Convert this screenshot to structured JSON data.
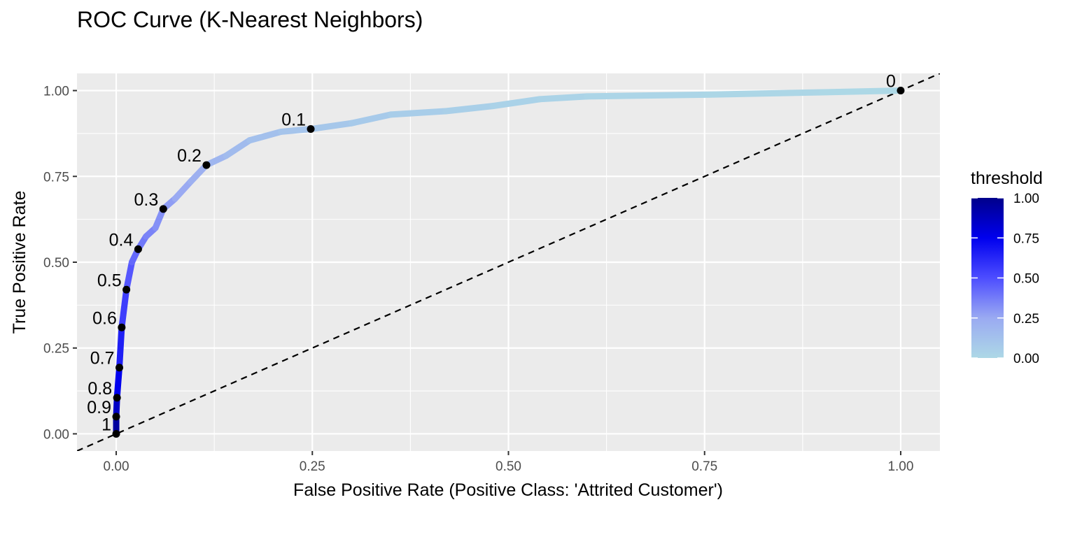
{
  "chart_data": {
    "type": "line",
    "title": "ROC Curve (K-Nearest Neighbors)",
    "xlabel": "False Positive Rate (Positive Class: 'Attrited Customer')",
    "ylabel": "True Positive Rate",
    "xlim": [
      -0.05,
      1.05
    ],
    "ylim": [
      -0.05,
      1.05
    ],
    "x_ticks": [
      0.0,
      0.25,
      0.5,
      0.75,
      1.0
    ],
    "x_tick_labels": [
      "0.00",
      "0.25",
      "0.50",
      "0.75",
      "1.00"
    ],
    "y_ticks": [
      0.0,
      0.25,
      0.5,
      0.75,
      1.0
    ],
    "y_tick_labels": [
      "0.00",
      "0.25",
      "0.50",
      "0.75",
      "1.00"
    ],
    "grid": true,
    "background": "#ebebeb",
    "legend_position": "right",
    "legend": {
      "title": "threshold",
      "labels": [
        "1.00",
        "0.75",
        "0.50",
        "0.25",
        "0.00"
      ],
      "values": [
        1.0,
        0.75,
        0.5,
        0.25,
        0.0
      ],
      "colors": [
        "#00008b",
        "#0000ee",
        "#4d4dff",
        "#9aaaf2",
        "#add8e6"
      ]
    },
    "curve": [
      {
        "fpr": 0.0,
        "tpr": 0.0,
        "threshold": 1.0
      },
      {
        "fpr": 0.0,
        "tpr": 0.05,
        "threshold": 0.9
      },
      {
        "fpr": 0.001,
        "tpr": 0.105,
        "threshold": 0.8
      },
      {
        "fpr": 0.004,
        "tpr": 0.193,
        "threshold": 0.7
      },
      {
        "fpr": 0.007,
        "tpr": 0.31,
        "threshold": 0.6
      },
      {
        "fpr": 0.013,
        "tpr": 0.42,
        "threshold": 0.5
      },
      {
        "fpr": 0.02,
        "tpr": 0.5,
        "threshold": 0.45
      },
      {
        "fpr": 0.028,
        "tpr": 0.538,
        "threshold": 0.4
      },
      {
        "fpr": 0.038,
        "tpr": 0.575,
        "threshold": 0.37
      },
      {
        "fpr": 0.05,
        "tpr": 0.6,
        "threshold": 0.34
      },
      {
        "fpr": 0.06,
        "tpr": 0.655,
        "threshold": 0.3
      },
      {
        "fpr": 0.075,
        "tpr": 0.685,
        "threshold": 0.27
      },
      {
        "fpr": 0.095,
        "tpr": 0.735,
        "threshold": 0.23
      },
      {
        "fpr": 0.115,
        "tpr": 0.783,
        "threshold": 0.2
      },
      {
        "fpr": 0.14,
        "tpr": 0.81,
        "threshold": 0.17
      },
      {
        "fpr": 0.17,
        "tpr": 0.855,
        "threshold": 0.14
      },
      {
        "fpr": 0.21,
        "tpr": 0.88,
        "threshold": 0.12
      },
      {
        "fpr": 0.248,
        "tpr": 0.888,
        "threshold": 0.1
      },
      {
        "fpr": 0.3,
        "tpr": 0.905,
        "threshold": 0.085
      },
      {
        "fpr": 0.35,
        "tpr": 0.93,
        "threshold": 0.07
      },
      {
        "fpr": 0.42,
        "tpr": 0.94,
        "threshold": 0.055
      },
      {
        "fpr": 0.48,
        "tpr": 0.955,
        "threshold": 0.04
      },
      {
        "fpr": 0.54,
        "tpr": 0.975,
        "threshold": 0.03
      },
      {
        "fpr": 0.6,
        "tpr": 0.983,
        "threshold": 0.02
      },
      {
        "fpr": 0.75,
        "tpr": 0.988,
        "threshold": 0.012
      },
      {
        "fpr": 0.9,
        "tpr": 0.995,
        "threshold": 0.005
      },
      {
        "fpr": 1.0,
        "tpr": 1.0,
        "threshold": 0.0
      }
    ],
    "threshold_points": [
      {
        "label": "1",
        "fpr": 0.0,
        "tpr": 0.0
      },
      {
        "label": "0.9",
        "fpr": 0.0,
        "tpr": 0.05
      },
      {
        "label": "0.8",
        "fpr": 0.001,
        "tpr": 0.105
      },
      {
        "label": "0.7",
        "fpr": 0.004,
        "tpr": 0.193
      },
      {
        "label": "0.6",
        "fpr": 0.007,
        "tpr": 0.31
      },
      {
        "label": "0.5",
        "fpr": 0.013,
        "tpr": 0.42
      },
      {
        "label": "0.4",
        "fpr": 0.028,
        "tpr": 0.538
      },
      {
        "label": "0.3",
        "fpr": 0.06,
        "tpr": 0.655
      },
      {
        "label": "0.2",
        "fpr": 0.115,
        "tpr": 0.783
      },
      {
        "label": "0.1",
        "fpr": 0.248,
        "tpr": 0.888
      },
      {
        "label": "0",
        "fpr": 1.0,
        "tpr": 1.0
      }
    ],
    "reference_line": {
      "from": [
        -0.05,
        -0.05
      ],
      "to": [
        1.05,
        1.05
      ],
      "style": "dashed"
    }
  }
}
